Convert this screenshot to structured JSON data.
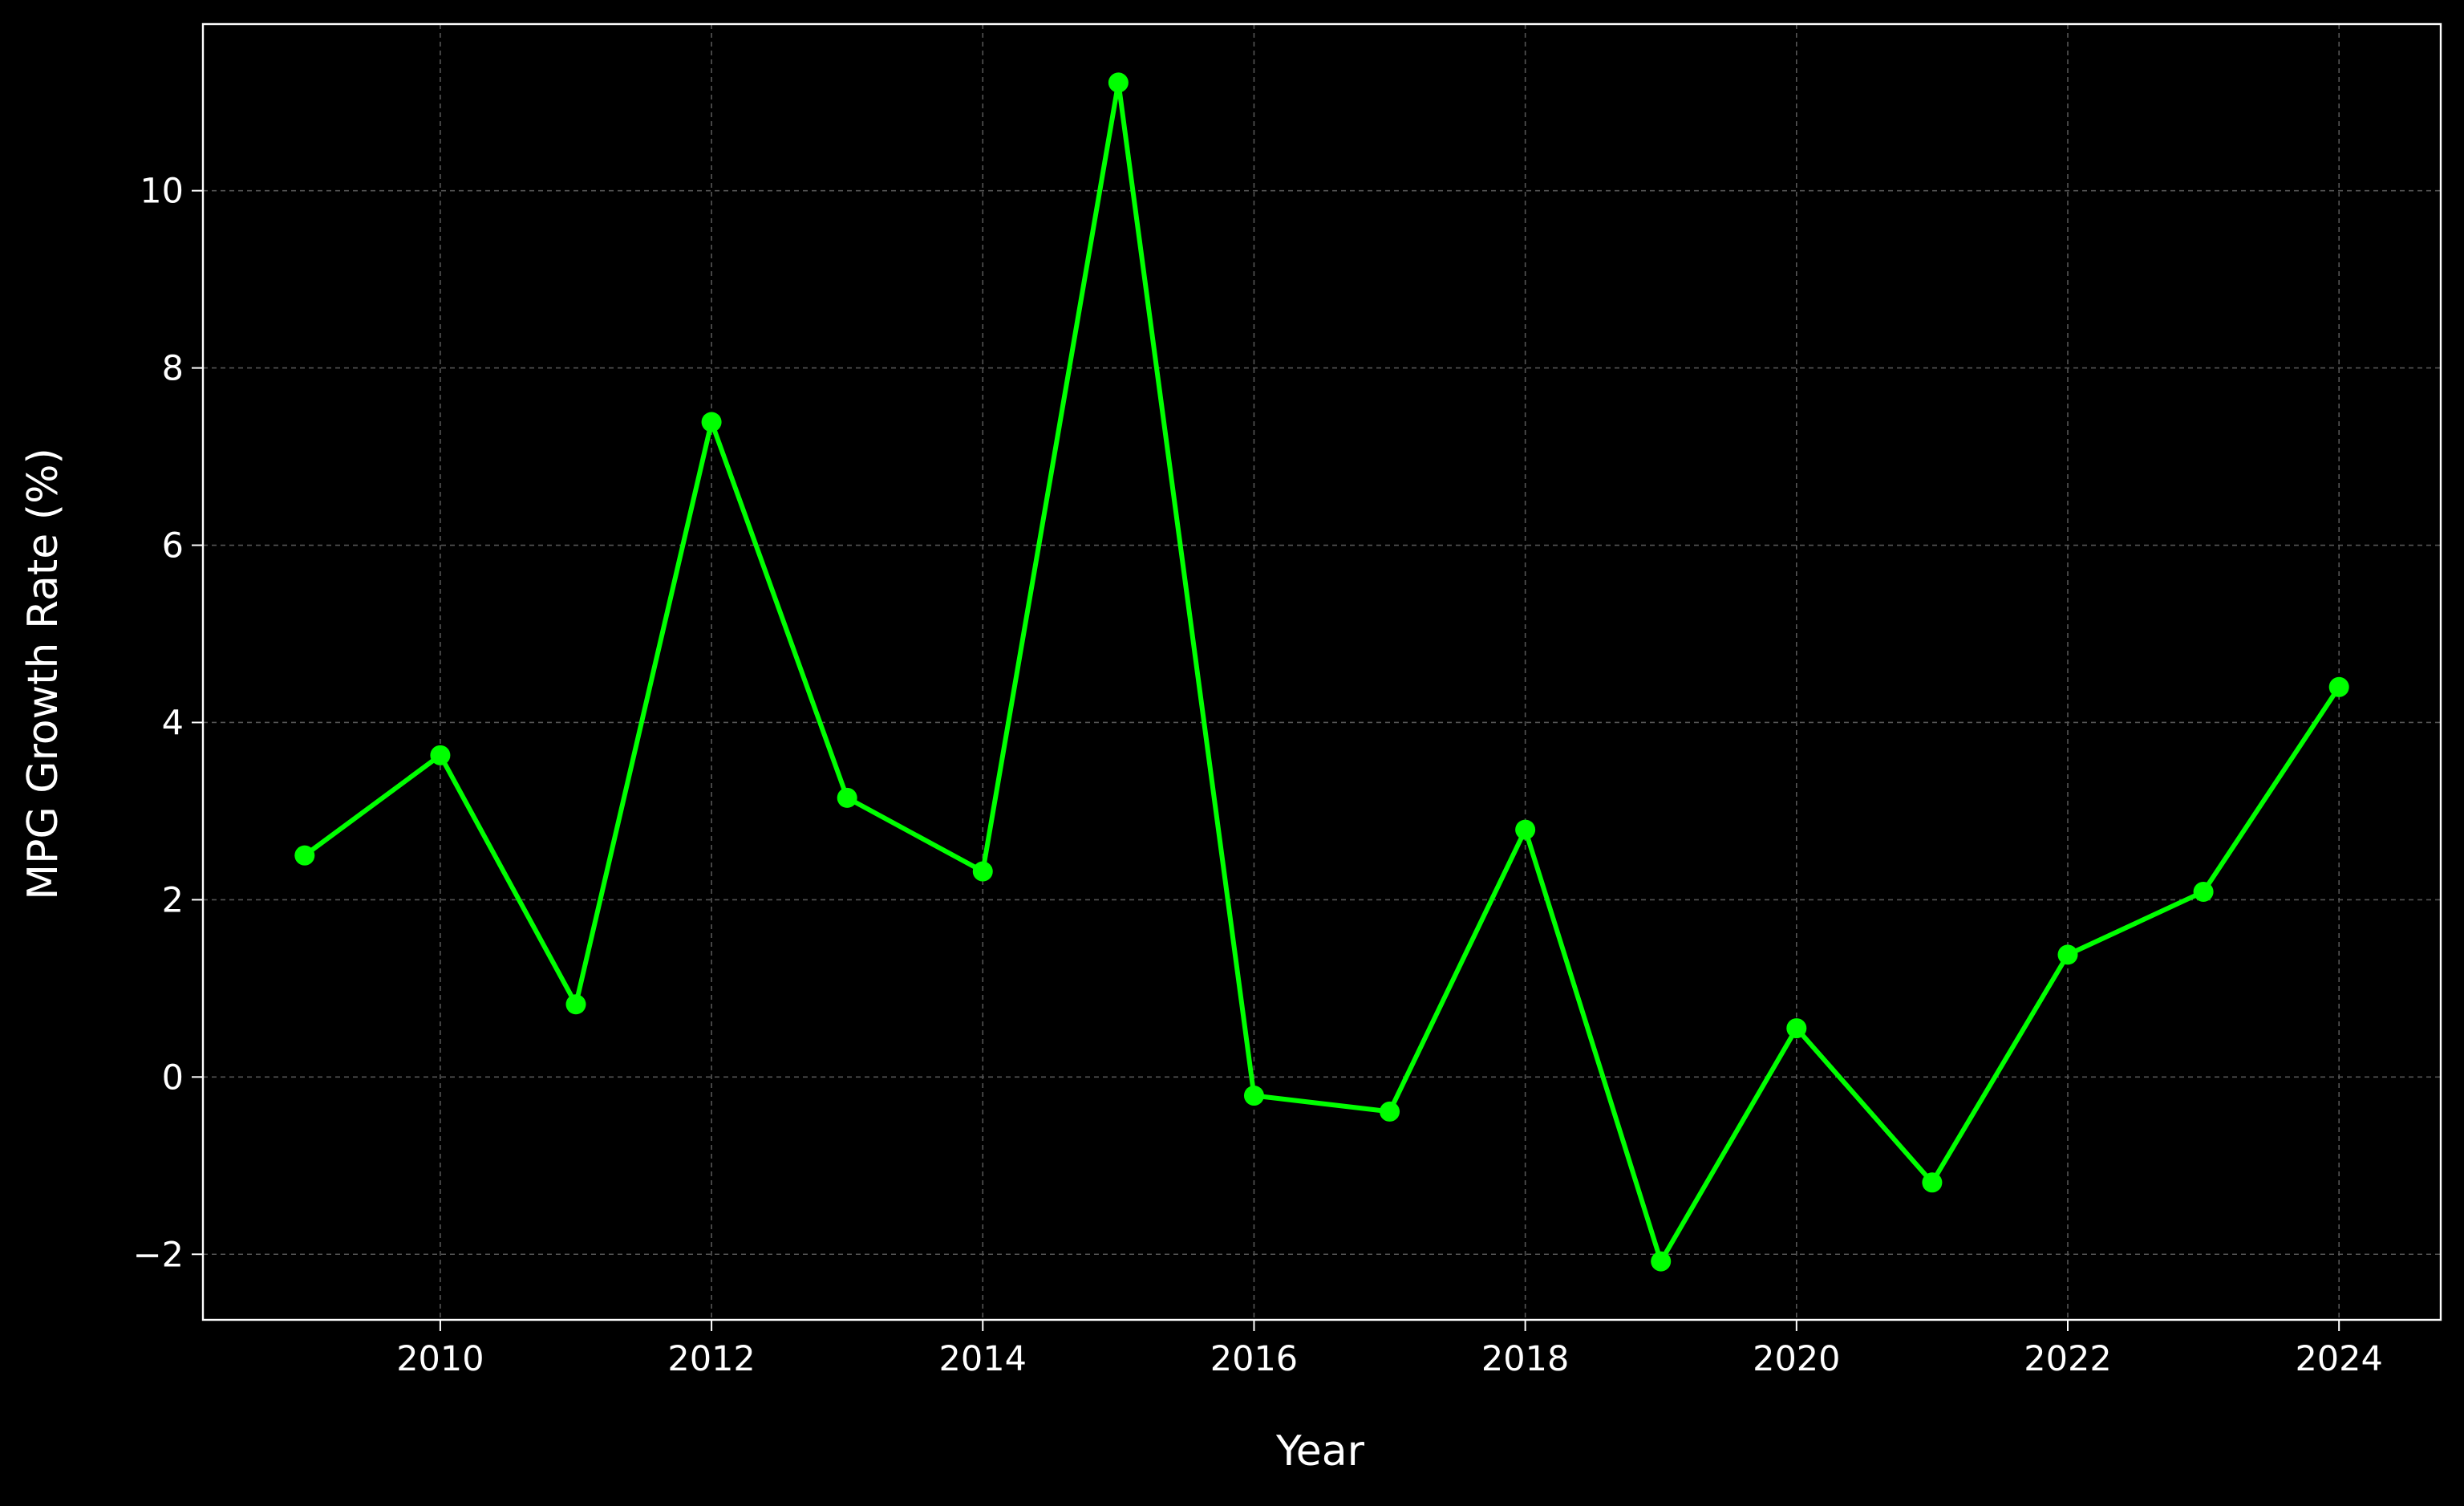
{
  "chart_data": {
    "type": "line",
    "title": "",
    "xlabel": "Year",
    "ylabel": "MPG Growth Rate (%)",
    "x": [
      2009,
      2010,
      2011,
      2012,
      2013,
      2014,
      2015,
      2016,
      2017,
      2018,
      2019,
      2020,
      2021,
      2022,
      2023,
      2024
    ],
    "series": [
      {
        "values": [
          2.5,
          3.63,
          0.82,
          7.39,
          3.15,
          2.32,
          11.22,
          -0.21,
          -0.39,
          2.79,
          -2.08,
          0.55,
          -1.19,
          1.38,
          2.09,
          4.4
        ],
        "color": "#00ff00",
        "marker": "circle"
      }
    ],
    "xlim": [
      2008.25,
      2024.75
    ],
    "ylim": [
      -2.74,
      11.88
    ],
    "xticks": [
      "2010",
      "2012",
      "2014",
      "2016",
      "2018",
      "2020",
      "2022",
      "2024"
    ],
    "yticks": [
      "−2",
      "0",
      "2",
      "4",
      "6",
      "8",
      "10"
    ],
    "grid": true,
    "legend": "none",
    "colors": {
      "background": "#000000",
      "axes": "#ffffff",
      "grid": "#555555",
      "line": "#00ff00"
    }
  }
}
